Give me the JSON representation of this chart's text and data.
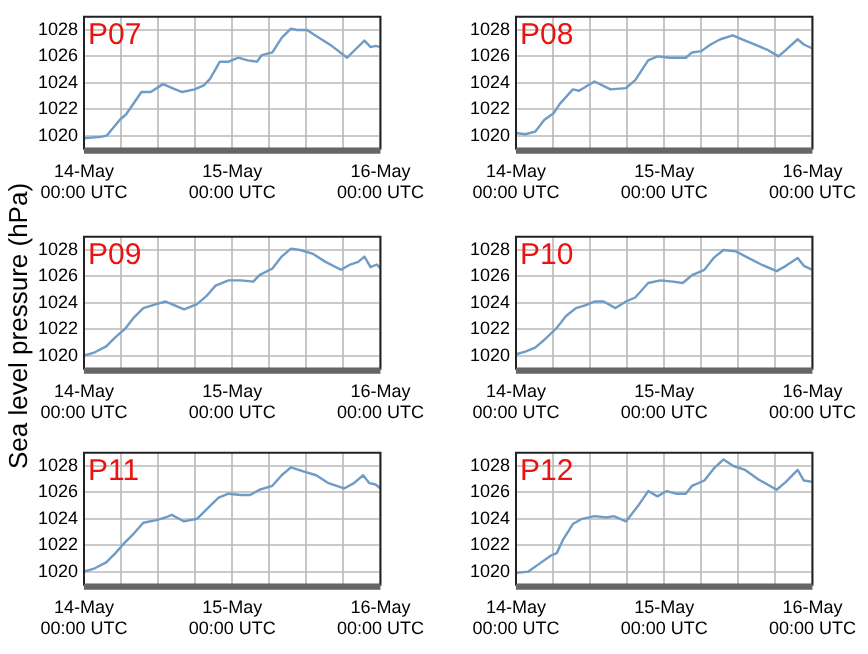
{
  "chart_data": [
    {
      "type": "line",
      "title": "P07",
      "xlim": [
        "--05-14T00:00",
        "--05-16T00:00"
      ],
      "ylim": [
        1019,
        1029
      ],
      "yticks": [
        1020,
        1022,
        1024,
        1026,
        1028
      ],
      "grid": true,
      "legend": false,
      "xticks": [
        {
          "value": "--05-14T00:00",
          "label": "14-May\n00:00 UTC"
        },
        {
          "value": "--05-14T06:00",
          "label": null
        },
        {
          "value": "--05-14T12:00",
          "label": null
        },
        {
          "value": "--05-14T18:00",
          "label": null
        },
        {
          "value": "--05-15T00:00",
          "label": "15-May\n00:00 UTC"
        },
        {
          "value": "--05-15T06:00",
          "label": null
        },
        {
          "value": "--05-15T12:00",
          "label": null
        },
        {
          "value": "--05-15T18:00",
          "label": null
        },
        {
          "value": "--05-16T00:00",
          "label": "16-May\n00:00 UTC"
        }
      ],
      "series": [
        {
          "color": "#6f9cc6",
          "x": [
            "--05-14T00:00",
            "--05-14T02:42",
            "--05-14T03:42",
            "--05-14T05:48",
            "--05-14T06:48",
            "--05-14T09:18",
            "--05-14T10:48",
            "--05-14T12:48",
            "--05-14T14:18",
            "--05-14T15:54",
            "--05-14T17:54",
            "--05-14T19:24",
            "--05-14T20:24",
            "--05-14T22:00",
            "--05-14T23:24",
            "--05-15T01:00",
            "--05-15T02:30",
            "--05-15T04:00",
            "--05-15T04:48",
            "--05-15T06:30",
            "--05-15T08:00",
            "--05-15T09:30",
            "--05-15T10:30",
            "--05-15T12:06",
            "--05-15T14:06",
            "--05-15T16:06",
            "--05-15T18:36",
            "--05-15T20:06",
            "--05-15T21:24",
            "--05-15T22:24",
            "--05-15T23:12",
            "--05-16T00:00"
          ],
          "values": [
            1019.8,
            1019.9,
            1020,
            1021.2,
            1021.6,
            1023.3,
            1023.3,
            1023.9,
            1023.6,
            1023.3,
            1023.5,
            1023.8,
            1024.3,
            1025.6,
            1025.6,
            1025.9,
            1025.7,
            1025.6,
            1026.1,
            1026.3,
            1027.4,
            1028.1,
            1028,
            1028,
            1027.4,
            1026.8,
            1025.9,
            1026.6,
            1027.2,
            1026.7,
            1026.8,
            1026.7
          ]
        }
      ]
    },
    {
      "type": "line",
      "title": "P08",
      "xlim": [
        "--05-14T00:00",
        "--05-16T00:00"
      ],
      "ylim": [
        1019,
        1029
      ],
      "yticks": [
        1020,
        1022,
        1024,
        1026,
        1028
      ],
      "grid": true,
      "legend": false,
      "xticks": [
        {
          "value": "--05-14T00:00",
          "label": "14-May\n00:00 UTC"
        },
        {
          "value": "--05-14T06:00",
          "label": null
        },
        {
          "value": "--05-14T12:00",
          "label": null
        },
        {
          "value": "--05-14T18:00",
          "label": null
        },
        {
          "value": "--05-15T00:00",
          "label": "15-May\n00:00 UTC"
        },
        {
          "value": "--05-15T06:00",
          "label": null
        },
        {
          "value": "--05-15T12:00",
          "label": null
        },
        {
          "value": "--05-15T18:00",
          "label": null
        },
        {
          "value": "--05-16T00:00",
          "label": "16-May\n00:00 UTC"
        }
      ],
      "series": [
        {
          "color": "#6f9cc6",
          "x": [
            "--05-14T00:00",
            "--05-14T01:30",
            "--05-14T03:06",
            "--05-14T04:36",
            "--05-14T06:06",
            "--05-14T07:06",
            "--05-14T09:12",
            "--05-14T10:12",
            "--05-14T12:42",
            "--05-14T15:18",
            "--05-14T17:48",
            "--05-14T19:18",
            "--05-14T21:24",
            "--05-14T22:54",
            "--05-15T00:54",
            "--05-15T03:30",
            "--05-15T04:30",
            "--05-15T06:00",
            "--05-15T07:30",
            "--05-15T09:06",
            "--05-15T11:06",
            "--05-15T13:06",
            "--05-15T15:12",
            "--05-15T16:42",
            "--05-15T18:30",
            "--05-15T19:42",
            "--05-15T21:36",
            "--05-15T22:36",
            "--05-16T00:00"
          ],
          "values": [
            1020.2,
            1020.1,
            1020.3,
            1021.2,
            1021.7,
            1022.4,
            1023.5,
            1023.4,
            1024.1,
            1023.5,
            1023.6,
            1024.2,
            1025.7,
            1026,
            1025.9,
            1025.9,
            1026.3,
            1026.4,
            1026.9,
            1027.3,
            1027.6,
            1027.2,
            1026.8,
            1026.5,
            1026,
            1026.5,
            1027.3,
            1026.9,
            1026.6
          ]
        }
      ]
    },
    {
      "type": "line",
      "title": "P09",
      "ylabel": "Sea level pressure (hPa)",
      "xlim": [
        "--05-14T00:00",
        "--05-16T00:00"
      ],
      "ylim": [
        1019,
        1029
      ],
      "yticks": [
        1020,
        1022,
        1024,
        1026,
        1028
      ],
      "grid": true,
      "legend": false,
      "xticks": [
        {
          "value": "--05-14T00:00",
          "label": "14-May\n00:00 UTC"
        },
        {
          "value": "--05-14T06:00",
          "label": null
        },
        {
          "value": "--05-14T12:00",
          "label": null
        },
        {
          "value": "--05-14T18:00",
          "label": null
        },
        {
          "value": "--05-15T00:00",
          "label": "15-May\n00:00 UTC"
        },
        {
          "value": "--05-15T06:00",
          "label": null
        },
        {
          "value": "--05-15T12:00",
          "label": null
        },
        {
          "value": "--05-15T18:00",
          "label": null
        },
        {
          "value": "--05-16T00:00",
          "label": "16-May\n00:00 UTC"
        }
      ],
      "series": [
        {
          "color": "#6f9cc6",
          "x": [
            "--05-14T00:00",
            "--05-14T01:30",
            "--05-14T03:36",
            "--05-14T05:06",
            "--05-14T06:36",
            "--05-14T08:06",
            "--05-14T09:36",
            "--05-14T11:42",
            "--05-14T13:12",
            "--05-14T14:12",
            "--05-14T16:12",
            "--05-14T18:18",
            "--05-14T19:48",
            "--05-14T21:18",
            "--05-14T23:24",
            "--05-15T01:24",
            "--05-15T03:24",
            "--05-15T04:24",
            "--05-15T06:30",
            "--05-15T08:00",
            "--05-15T09:30",
            "--05-15T11:00",
            "--05-15T13:06",
            "--05-15T15:06",
            "--05-15T17:36",
            "--05-15T19:06",
            "--05-15T20:24",
            "--05-15T21:24",
            "--05-15T22:24",
            "--05-15T23:24",
            "--05-16T00:00"
          ],
          "values": [
            1020,
            1020.2,
            1020.7,
            1021.4,
            1022,
            1022.9,
            1023.6,
            1023.9,
            1024.1,
            1023.9,
            1023.5,
            1023.9,
            1024.5,
            1025.3,
            1025.7,
            1025.7,
            1025.6,
            1026.1,
            1026.6,
            1027.5,
            1028.1,
            1028,
            1027.7,
            1027.1,
            1026.5,
            1026.9,
            1027.1,
            1027.5,
            1026.7,
            1026.9,
            1026.6
          ]
        }
      ]
    },
    {
      "type": "line",
      "title": "P10",
      "xlim": [
        "--05-14T00:00",
        "--05-16T00:00"
      ],
      "ylim": [
        1019,
        1029
      ],
      "yticks": [
        1020,
        1022,
        1024,
        1026,
        1028
      ],
      "grid": true,
      "legend": false,
      "xticks": [
        {
          "value": "--05-14T00:00",
          "label": "14-May\n00:00 UTC"
        },
        {
          "value": "--05-14T06:00",
          "label": null
        },
        {
          "value": "--05-14T12:00",
          "label": null
        },
        {
          "value": "--05-14T18:00",
          "label": null
        },
        {
          "value": "--05-15T00:00",
          "label": "15-May\n00:00 UTC"
        },
        {
          "value": "--05-15T06:00",
          "label": null
        },
        {
          "value": "--05-15T12:00",
          "label": null
        },
        {
          "value": "--05-15T18:00",
          "label": null
        },
        {
          "value": "--05-16T00:00",
          "label": "16-May\n00:00 UTC"
        }
      ],
      "series": [
        {
          "color": "#6f9cc6",
          "x": [
            "--05-14T00:00",
            "--05-14T01:30",
            "--05-14T03:06",
            "--05-14T04:36",
            "--05-14T06:36",
            "--05-14T08:06",
            "--05-14T09:42",
            "--05-14T11:12",
            "--05-14T12:42",
            "--05-14T14:12",
            "--05-14T16:06",
            "--05-14T17:48",
            "--05-14T19:18",
            "--05-14T21:24",
            "--05-14T23:24",
            "--05-15T01:24",
            "--05-15T03:00",
            "--05-15T04:30",
            "--05-15T06:30",
            "--05-15T08:00",
            "--05-15T09:36",
            "--05-15T11:36",
            "--05-15T13:36",
            "--05-15T15:42",
            "--05-15T18:12",
            "--05-15T19:42",
            "--05-15T21:36",
            "--05-15T22:36",
            "--05-16T00:00"
          ],
          "values": [
            1020.1,
            1020.3,
            1020.6,
            1021.2,
            1022.1,
            1023,
            1023.6,
            1023.8,
            1024.1,
            1024.1,
            1023.6,
            1024.1,
            1024.4,
            1025.5,
            1025.7,
            1025.6,
            1025.5,
            1026.1,
            1026.5,
            1027.4,
            1028,
            1027.9,
            1027.4,
            1026.9,
            1026.4,
            1026.8,
            1027.4,
            1026.8,
            1026.5
          ]
        }
      ]
    },
    {
      "type": "line",
      "title": "P11",
      "xlim": [
        "--05-14T00:00",
        "--05-16T00:00"
      ],
      "ylim": [
        1019,
        1029
      ],
      "yticks": [
        1020,
        1022,
        1024,
        1026,
        1028
      ],
      "grid": true,
      "legend": false,
      "xticks": [
        {
          "value": "--05-14T00:00",
          "label": "14-May\n00:00 UTC"
        },
        {
          "value": "--05-14T06:00",
          "label": null
        },
        {
          "value": "--05-14T12:00",
          "label": null
        },
        {
          "value": "--05-14T18:00",
          "label": null
        },
        {
          "value": "--05-15T00:00",
          "label": "15-May\n00:00 UTC"
        },
        {
          "value": "--05-15T06:00",
          "label": null
        },
        {
          "value": "--05-15T12:00",
          "label": null
        },
        {
          "value": "--05-15T18:00",
          "label": null
        },
        {
          "value": "--05-16T00:00",
          "label": "16-May\n00:00 UTC"
        }
      ],
      "series": [
        {
          "color": "#6f9cc6",
          "x": [
            "--05-14T00:00",
            "--05-14T01:30",
            "--05-14T03:36",
            "--05-14T05:06",
            "--05-14T06:36",
            "--05-14T08:06",
            "--05-14T09:36",
            "--05-14T11:42",
            "--05-14T13:12",
            "--05-14T14:12",
            "--05-14T16:12",
            "--05-14T18:18",
            "--05-14T19:48",
            "--05-14T21:48",
            "--05-14T23:24",
            "--05-15T01:24",
            "--05-15T02:54",
            "--05-15T04:24",
            "--05-15T06:30",
            "--05-15T08:00",
            "--05-15T09:30",
            "--05-15T11:30",
            "--05-15T13:36",
            "--05-15T15:36",
            "--05-15T18:06",
            "--05-15T19:42",
            "--05-15T21:12",
            "--05-15T22:12",
            "--05-15T23:12",
            "--05-16T00:00"
          ],
          "values": [
            1020,
            1020.2,
            1020.7,
            1021.4,
            1022.2,
            1022.9,
            1023.7,
            1023.9,
            1024.1,
            1024.3,
            1023.8,
            1024,
            1024.7,
            1025.6,
            1025.9,
            1025.8,
            1025.8,
            1026.2,
            1026.5,
            1027.3,
            1027.9,
            1027.6,
            1027.3,
            1026.7,
            1026.3,
            1026.7,
            1027.3,
            1026.7,
            1026.6,
            1026.3
          ]
        }
      ]
    },
    {
      "type": "line",
      "title": "P12",
      "xlim": [
        "--05-14T00:00",
        "--05-16T00:00"
      ],
      "ylim": [
        1019,
        1029
      ],
      "yticks": [
        1020,
        1022,
        1024,
        1026,
        1028
      ],
      "grid": true,
      "legend": false,
      "xticks": [
        {
          "value": "--05-14T00:00",
          "label": "14-May\n00:00 UTC"
        },
        {
          "value": "--05-14T06:00",
          "label": null
        },
        {
          "value": "--05-14T12:00",
          "label": null
        },
        {
          "value": "--05-14T18:00",
          "label": null
        },
        {
          "value": "--05-15T00:00",
          "label": "15-May\n00:00 UTC"
        },
        {
          "value": "--05-15T06:00",
          "label": null
        },
        {
          "value": "--05-15T12:00",
          "label": null
        },
        {
          "value": "--05-15T18:00",
          "label": null
        },
        {
          "value": "--05-16T00:00",
          "label": "16-May\n00:00 UTC"
        }
      ],
      "series": [
        {
          "color": "#6f9cc6",
          "x": [
            "--05-14T00:00",
            "--05-14T02:00",
            "--05-14T04:06",
            "--05-14T05:36",
            "--05-14T06:36",
            "--05-14T07:36",
            "--05-14T09:12",
            "--05-14T10:42",
            "--05-14T12:42",
            "--05-14T14:42",
            "--05-14T15:48",
            "--05-14T17:48",
            "--05-14T19:48",
            "--05-14T21:24",
            "--05-14T22:54",
            "--05-15T00:24",
            "--05-15T01:54",
            "--05-15T03:30",
            "--05-15T04:30",
            "--05-15T06:30",
            "--05-15T08:00",
            "--05-15T09:36",
            "--05-15T11:12",
            "--05-15T13:06",
            "--05-15T15:12",
            "--05-15T18:12",
            "--05-15T19:42",
            "--05-15T21:36",
            "--05-15T22:36",
            "--05-16T00:00"
          ],
          "values": [
            1019.9,
            1020,
            1020.7,
            1021.2,
            1021.4,
            1022.4,
            1023.6,
            1024,
            1024.2,
            1024.1,
            1024.2,
            1023.8,
            1025,
            1026.1,
            1025.7,
            1026.1,
            1025.9,
            1025.9,
            1026.5,
            1026.9,
            1027.8,
            1028.5,
            1028,
            1027.7,
            1027,
            1026.2,
            1026.8,
            1027.7,
            1026.9,
            1026.8
          ]
        }
      ]
    }
  ]
}
